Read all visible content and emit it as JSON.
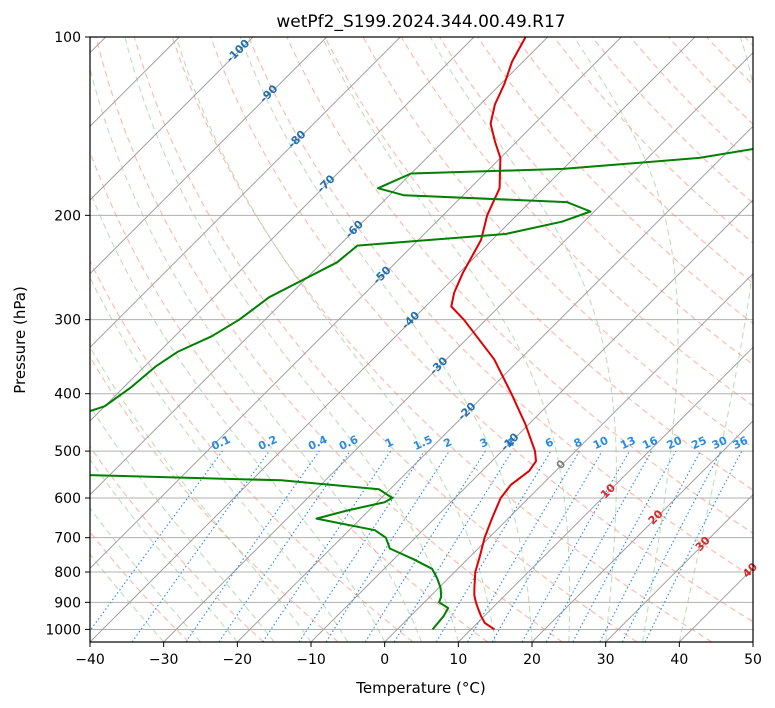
{
  "chart_data": {
    "type": "line",
    "subtype": "skew-t log-p",
    "title": "wetPf2_S199.2024.344.00.49.R17",
    "xlabel": "Temperature (°C)",
    "ylabel": "Pressure (hPa)",
    "xlim": [
      -40,
      50
    ],
    "ylim": [
      1050,
      100
    ],
    "y_scale": "log",
    "x_ticks": [
      "−40",
      "−30",
      "−20",
      "−10",
      "0",
      "10",
      "20",
      "30",
      "40",
      "50"
    ],
    "y_ticks": [
      "100",
      "200",
      "300",
      "400",
      "500",
      "600",
      "700",
      "800",
      "900",
      "1000"
    ],
    "y_tick_values": [
      100,
      200,
      300,
      400,
      500,
      600,
      700,
      800,
      900,
      1000
    ],
    "grid": true,
    "series": [
      {
        "role": "temperature",
        "color": "#e00000",
        "points": [
          {
            "p": 1000,
            "t": 13.2
          },
          {
            "p": 975,
            "t": 11.0
          },
          {
            "p": 950,
            "t": 9.6
          },
          {
            "p": 925,
            "t": 8.3
          },
          {
            "p": 900,
            "t": 7.0
          },
          {
            "p": 875,
            "t": 5.8
          },
          {
            "p": 850,
            "t": 4.8
          },
          {
            "p": 800,
            "t": 2.8
          },
          {
            "p": 750,
            "t": 1.2
          },
          {
            "p": 700,
            "t": -0.6
          },
          {
            "p": 650,
            "t": -2.2
          },
          {
            "p": 600,
            "t": -3.8
          },
          {
            "p": 570,
            "t": -4.2
          },
          {
            "p": 540,
            "t": -3.6
          },
          {
            "p": 520,
            "t": -4.0
          },
          {
            "p": 500,
            "t": -5.5
          },
          {
            "p": 450,
            "t": -10.5
          },
          {
            "p": 400,
            "t": -16.5
          },
          {
            "p": 350,
            "t": -23.5
          },
          {
            "p": 300,
            "t": -33.0
          },
          {
            "p": 285,
            "t": -36.5
          },
          {
            "p": 270,
            "t": -38.0
          },
          {
            "p": 250,
            "t": -39.5
          },
          {
            "p": 220,
            "t": -41.5
          },
          {
            "p": 200,
            "t": -44.0
          },
          {
            "p": 180,
            "t": -46.0
          },
          {
            "p": 160,
            "t": -50.0
          },
          {
            "p": 150,
            "t": -53.0
          },
          {
            "p": 140,
            "t": -56.0
          },
          {
            "p": 130,
            "t": -58.0
          },
          {
            "p": 120,
            "t": -59.5
          },
          {
            "p": 110,
            "t": -61.5
          },
          {
            "p": 100,
            "t": -63.0
          }
        ]
      },
      {
        "role": "dewpoint",
        "color": "#008000",
        "points": [
          {
            "p": 1000,
            "t": 4.8
          },
          {
            "p": 950,
            "t": 4.5
          },
          {
            "p": 920,
            "t": 4.0
          },
          {
            "p": 900,
            "t": 2.0
          },
          {
            "p": 880,
            "t": 1.5
          },
          {
            "p": 850,
            "t": 0.2
          },
          {
            "p": 820,
            "t": -1.5
          },
          {
            "p": 790,
            "t": -3.5
          },
          {
            "p": 760,
            "t": -7.5
          },
          {
            "p": 730,
            "t": -12.0
          },
          {
            "p": 700,
            "t": -14.0
          },
          {
            "p": 680,
            "t": -16.5
          },
          {
            "p": 650,
            "t": -26.0
          },
          {
            "p": 630,
            "t": -23.0
          },
          {
            "p": 610,
            "t": -19.0
          },
          {
            "p": 600,
            "t": -18.5
          },
          {
            "p": 580,
            "t": -21.5
          },
          {
            "p": 560,
            "t": -36.0
          },
          {
            "p": 545,
            "t": -72.0
          },
          {
            "p": 470,
            "t": -80.0
          },
          {
            "p": 450,
            "t": -75.0
          },
          {
            "p": 420,
            "t": -70.0
          },
          {
            "p": 390,
            "t": -69.0
          },
          {
            "p": 360,
            "t": -68.5
          },
          {
            "p": 340,
            "t": -67.5
          },
          {
            "p": 320,
            "t": -65.0
          },
          {
            "p": 300,
            "t": -63.5
          },
          {
            "p": 275,
            "t": -62.5
          },
          {
            "p": 255,
            "t": -60.0
          },
          {
            "p": 240,
            "t": -58.0
          },
          {
            "p": 225,
            "t": -57.5
          },
          {
            "p": 215,
            "t": -39.0
          },
          {
            "p": 205,
            "t": -33.0
          },
          {
            "p": 197,
            "t": -30.5
          },
          {
            "p": 190,
            "t": -35.0
          },
          {
            "p": 185,
            "t": -58.0
          },
          {
            "p": 180,
            "t": -62.5
          },
          {
            "p": 170,
            "t": -60.0
          },
          {
            "p": 167,
            "t": -40.0
          },
          {
            "p": 160,
            "t": -23.0
          },
          {
            "p": 152,
            "t": -14.0
          },
          {
            "p": 145,
            "t": -12.5
          },
          {
            "p": 138,
            "t": -14.5
          },
          {
            "p": 130,
            "t": -15.5
          },
          {
            "p": 122,
            "t": -14.5
          },
          {
            "p": 114,
            "t": -13.5
          },
          {
            "p": 106,
            "t": -14.5
          },
          {
            "p": 100,
            "t": -16.5
          }
        ]
      }
    ],
    "isotherm_labels": [
      "-100",
      "-90",
      "-80",
      "-70",
      "-60",
      "-50",
      "-40",
      "-30",
      "-20",
      "-10",
      "0",
      "10",
      "20",
      "30",
      "40"
    ],
    "isotherm_label_values": [
      -100,
      -90,
      -80,
      -70,
      -60,
      -50,
      -40,
      -30,
      -20,
      -10,
      0,
      10,
      20,
      30,
      40
    ],
    "mixing_ratio_labels": [
      "0.1",
      "0.2",
      "0.4",
      "0.6",
      "1",
      "1.5",
      "2",
      "3",
      "4",
      "6",
      "8",
      "10",
      "13",
      "16",
      "20",
      "25",
      "30",
      "36"
    ],
    "mixing_ratio_values": [
      0.1,
      0.2,
      0.4,
      0.6,
      1,
      1.5,
      2,
      3,
      4,
      6,
      8,
      10,
      13,
      16,
      20,
      25,
      30,
      36
    ],
    "mixing_ratio_label_pressure": 500,
    "colors": {
      "isotherm_cold": "#1f6fb0",
      "isotherm_zero": "#808080",
      "isotherm_warm": "#d62728",
      "mixing_ratio": "#2a8be0",
      "dry_adiabat": "#fa8060",
      "moist_adiabat": "#8fc98f",
      "skewed_isotherm_line": "#a0a0a0",
      "grid": "#b0b0b0"
    }
  }
}
